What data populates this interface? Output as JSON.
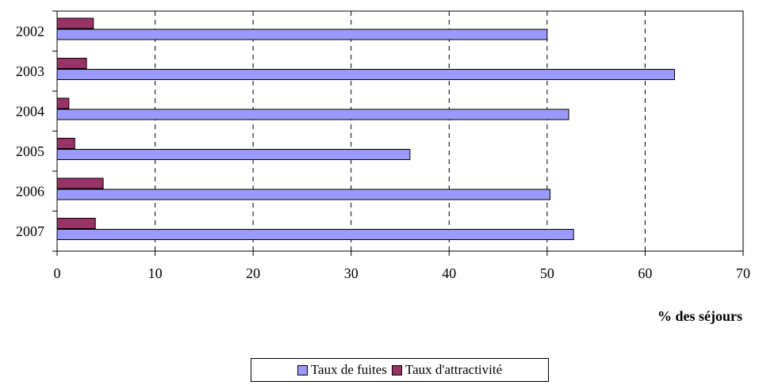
{
  "chart_data": {
    "type": "bar",
    "orientation": "horizontal",
    "categories": [
      "2002",
      "2003",
      "2004",
      "2005",
      "2006",
      "2007"
    ],
    "series": [
      {
        "name": "Taux de fuites",
        "color": "#9999ff",
        "values": [
          50.0,
          63.0,
          52.2,
          36.0,
          50.3,
          52.7
        ]
      },
      {
        "name": "Taux d'attractivité",
        "color": "#993366",
        "values": [
          3.7,
          3.0,
          1.2,
          1.8,
          4.7,
          3.9
        ]
      }
    ],
    "xlabel": "% des séjours",
    "xlim": [
      0,
      70
    ],
    "xticks": [
      "0",
      "10",
      "20",
      "30",
      "40",
      "50",
      "60",
      "70"
    ],
    "grid": "vertical dashed",
    "legend_position": "bottom"
  }
}
